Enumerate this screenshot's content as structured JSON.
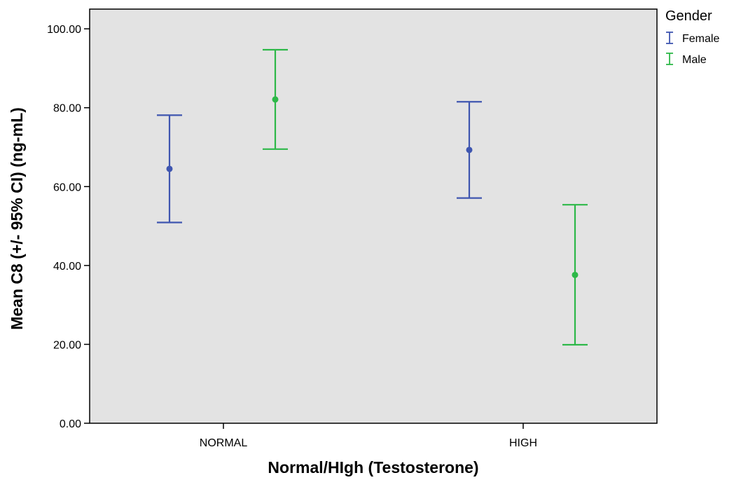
{
  "chart_data": {
    "type": "errorbar",
    "title": "",
    "xlabel": "Normal/HIgh (Testosterone)",
    "ylabel": "Mean C8 (+/- 95% CI) (ng-mL)",
    "ylim": [
      0,
      105
    ],
    "yticks": [
      0,
      20,
      40,
      60,
      80,
      100
    ],
    "ytick_labels": [
      "0.00",
      "20.00",
      "40.00",
      "60.00",
      "80.00",
      "100.00"
    ],
    "categories": [
      "NORMAL",
      "HIGH"
    ],
    "legend": {
      "title": "Gender",
      "position": "top-right-outside"
    },
    "grid": false,
    "plot_background": "#e3e3e3",
    "series": [
      {
        "name": "Female",
        "color": "#3f56b0",
        "mean": [
          64.5,
          69.3
        ],
        "lower": [
          50.9,
          57.1
        ],
        "upper": [
          78.1,
          81.5
        ]
      },
      {
        "name": "Male",
        "color": "#2db848",
        "mean": [
          82.1,
          37.6
        ],
        "lower": [
          69.5,
          19.9
        ],
        "upper": [
          94.7,
          55.4
        ]
      }
    ]
  }
}
